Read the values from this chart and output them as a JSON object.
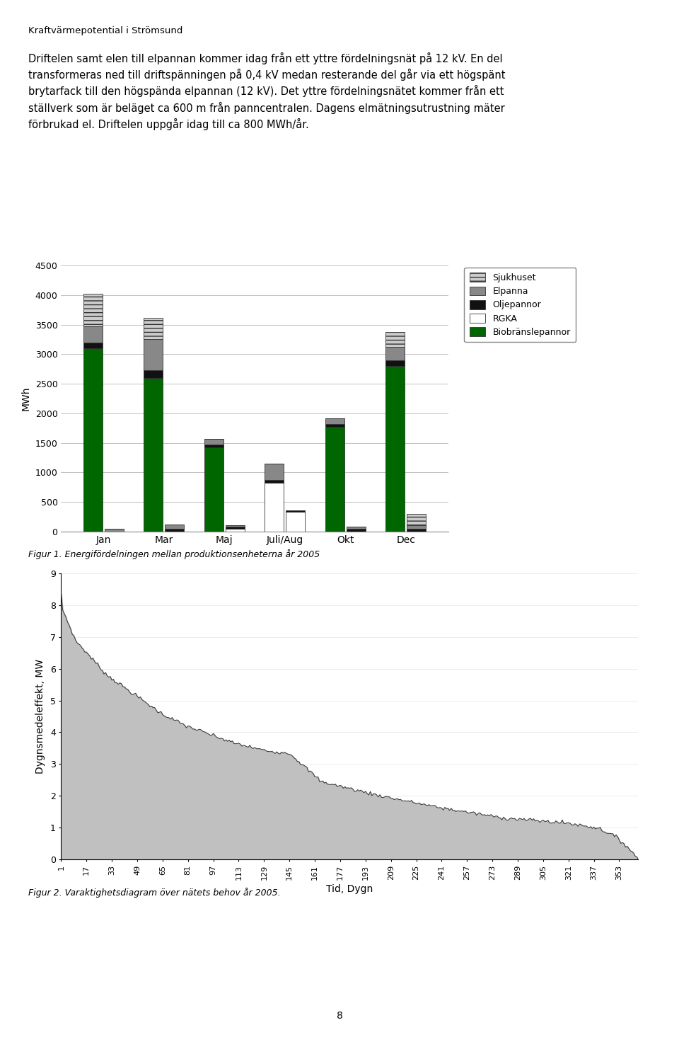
{
  "title_header": "Kraftvärmepotential i Strömsund",
  "paragraph_line1": "Driftelen samt elen till elpannan kommer idag från ett yttre fördelningsnät på 12 kV. En del",
  "paragraph_line2": "transformeras ned till driftspänningen på 0,4 kV medan resterande del går via ett högspänt",
  "paragraph_line3": "brytarfack till den högspända elpannan (12 kV). Det yttre fördelningsnätet kommer från ett",
  "paragraph_line4": "ställverk som är beläget ca 600 m från panncentralen. Dagens elmätningsutrustning mäter",
  "paragraph_line5": "förbrukad el. Driftelen uppgår idag till ca 800 MWh/år.",
  "bar_categories": [
    "Jan",
    "Mar",
    "Maj",
    "Juli/Aug",
    "Okt",
    "Dec"
  ],
  "bar_data_left": {
    "Biobränslepannor": [
      3100,
      2600,
      1420,
      0,
      1770,
      2800
    ],
    "RGKA": [
      0,
      0,
      0,
      820,
      0,
      0
    ],
    "Oljepannor": [
      100,
      130,
      50,
      50,
      50,
      100
    ],
    "Elpanna": [
      270,
      530,
      100,
      280,
      100,
      230
    ],
    "Sjukhuset": [
      560,
      360,
      0,
      0,
      0,
      250
    ]
  },
  "bar_data_right": {
    "Biobränslepannor": [
      0,
      0,
      0,
      0,
      0,
      0
    ],
    "RGKA": [
      0,
      0,
      50,
      330,
      0,
      0
    ],
    "Oljepannor": [
      0,
      50,
      30,
      30,
      50,
      50
    ],
    "Elpanna": [
      50,
      70,
      30,
      0,
      30,
      50
    ],
    "Sjukhuset": [
      0,
      0,
      0,
      0,
      0,
      200
    ]
  },
  "bar_colors": {
    "Biobränslepannor": "#006600",
    "RGKA": "#ffffff",
    "Oljepannor": "#111111",
    "Elpanna": "#888888",
    "Sjukhuset": "#cccccc"
  },
  "bar_hatches": {
    "Biobränslepannor": "",
    "RGKA": "",
    "Oljepannor": "",
    "Elpanna": "",
    "Sjukhuset": "---"
  },
  "bar_ylabel": "MWh",
  "bar_ylim": [
    0,
    4500
  ],
  "bar_yticks": [
    0,
    500,
    1000,
    1500,
    2000,
    2500,
    3000,
    3500,
    4000,
    4500
  ],
  "fig1_caption": "Figur 1. Energifördelningen mellan produktionsenheterna år 2005",
  "area_xlabel": "Tid, Dygn",
  "area_ylabel": "Dygnsmedeleffekt, MW",
  "area_ylim": [
    0,
    9
  ],
  "area_yticks": [
    0,
    1,
    2,
    3,
    4,
    5,
    6,
    7,
    8,
    9
  ],
  "area_xticks": [
    1,
    17,
    33,
    49,
    65,
    81,
    97,
    113,
    129,
    145,
    161,
    177,
    193,
    209,
    225,
    241,
    257,
    273,
    289,
    305,
    321,
    337,
    353
  ],
  "area_fill_color": "#c0c0c0",
  "area_line_color": "#333333",
  "fig2_caption": "Figur 2. Varaktighetsdiagram över nätets behov år 2005.",
  "page_number": "8",
  "background_color": "#ffffff"
}
